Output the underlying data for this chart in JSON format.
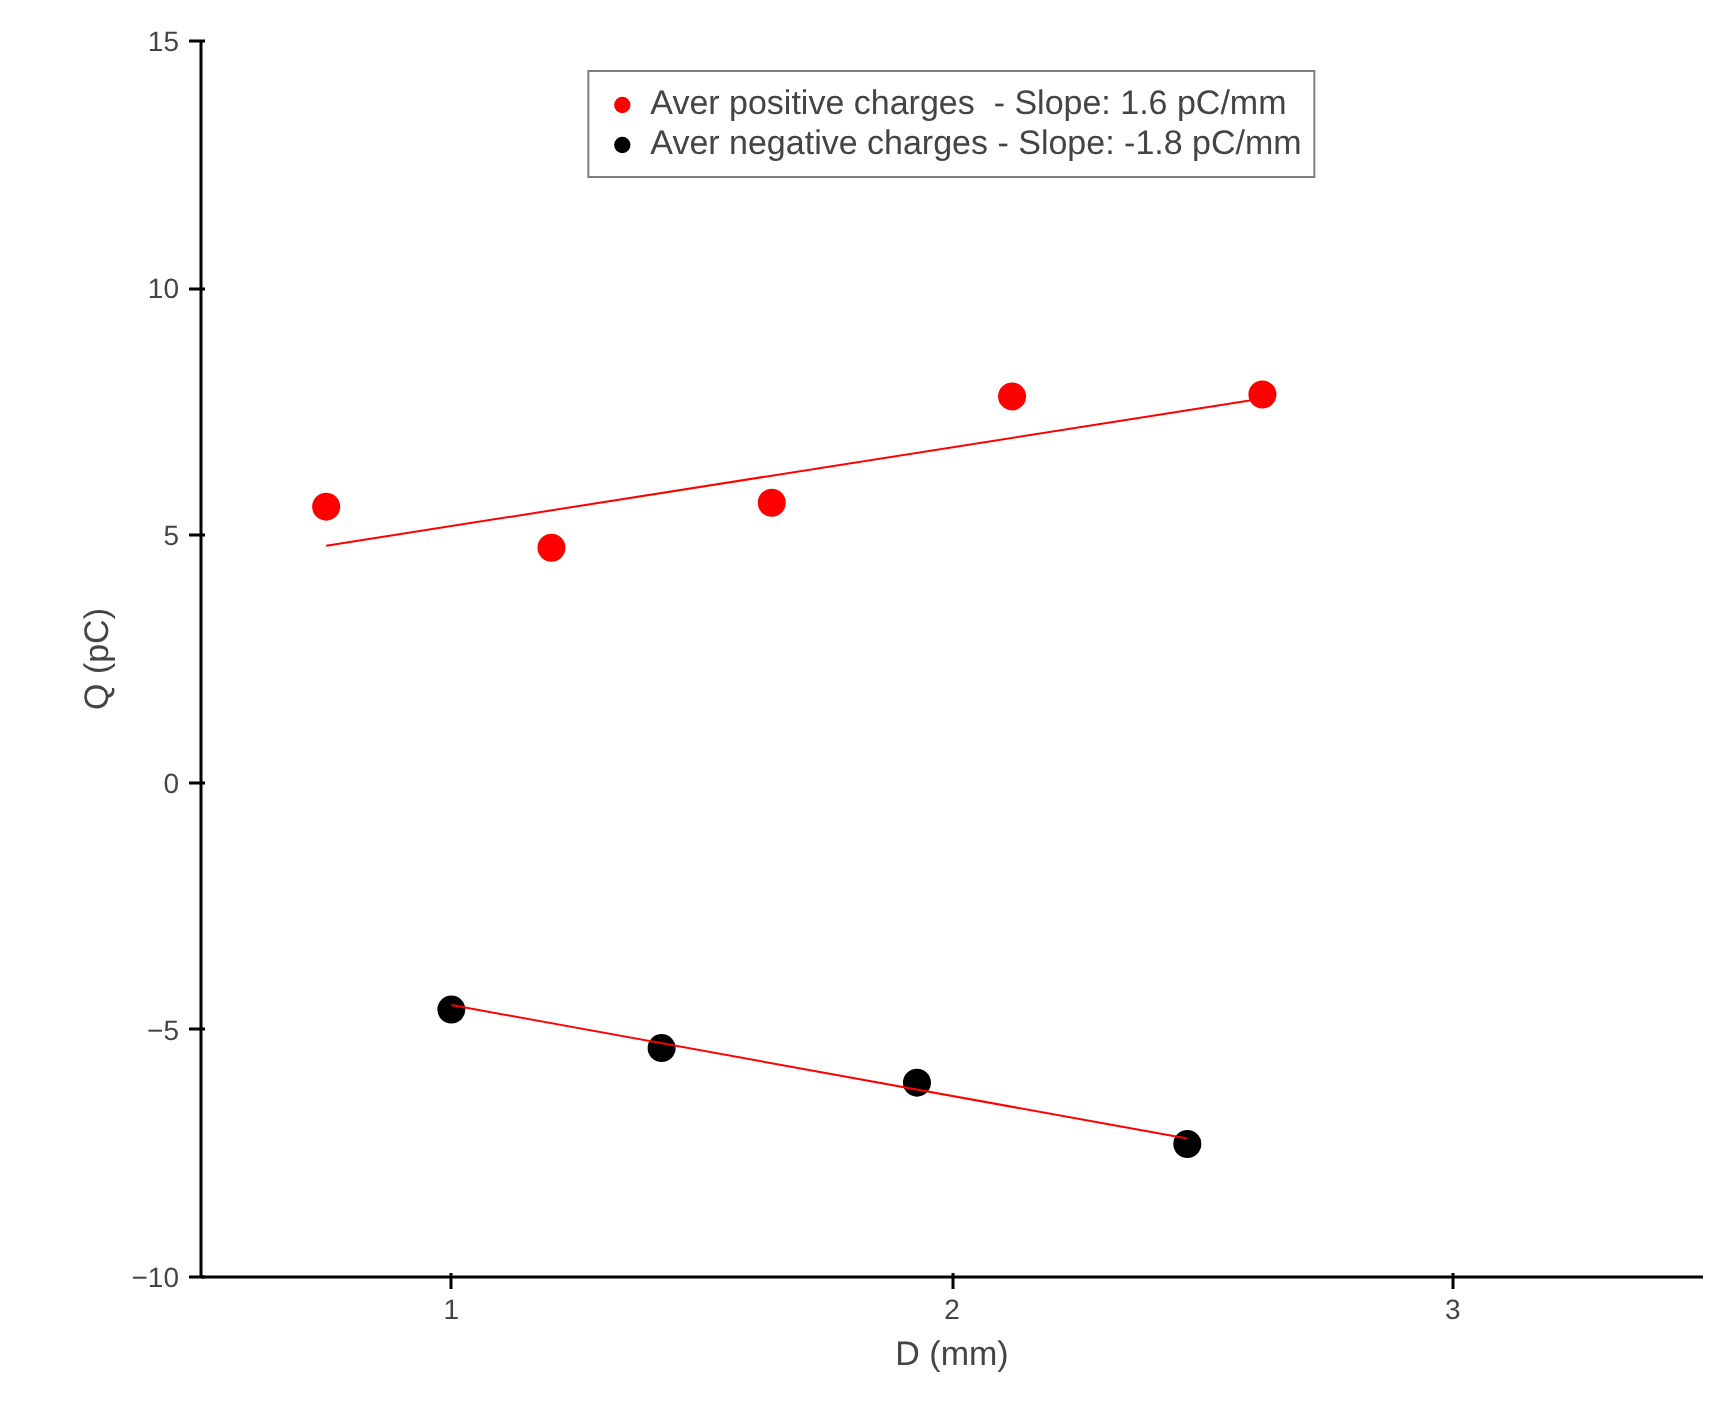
{
  "chart_data": {
    "type": "scatter",
    "xlabel": "D (mm)",
    "ylabel": "Q (pC)",
    "xlim": [
      0.5,
      3.5
    ],
    "ylim": [
      -10,
      15
    ],
    "xticks": [
      1,
      2,
      3
    ],
    "yticks": [
      -10,
      -5,
      0,
      5,
      10,
      15
    ],
    "grid": false,
    "legend": "top",
    "series": [
      {
        "name": "Aver positive charges  - Slope: 1.6 pC/mm",
        "marker": "circle",
        "color": "#ff0000",
        "x": [
          0.75,
          1.2,
          1.64,
          2.12,
          2.62
        ],
        "values": [
          5.58,
          4.75,
          5.66,
          7.81,
          7.85
        ]
      },
      {
        "name": "Aver negative charges - Slope: -1.8 pC/mm",
        "marker": "circle",
        "color": "#000000",
        "x": [
          1.0,
          1.42,
          1.93,
          2.47
        ],
        "values": [
          -4.59,
          -5.37,
          -6.07,
          -7.31
        ]
      },
      {
        "type": "line",
        "marker": "none",
        "color": "#ff0000",
        "x": [
          0.75,
          2.62
        ],
        "values": [
          4.79,
          7.77
        ]
      },
      {
        "type": "line",
        "marker": "none",
        "color": "#ff0000",
        "x": [
          1.0,
          2.47
        ],
        "values": [
          -4.5,
          -7.2
        ]
      }
    ]
  }
}
